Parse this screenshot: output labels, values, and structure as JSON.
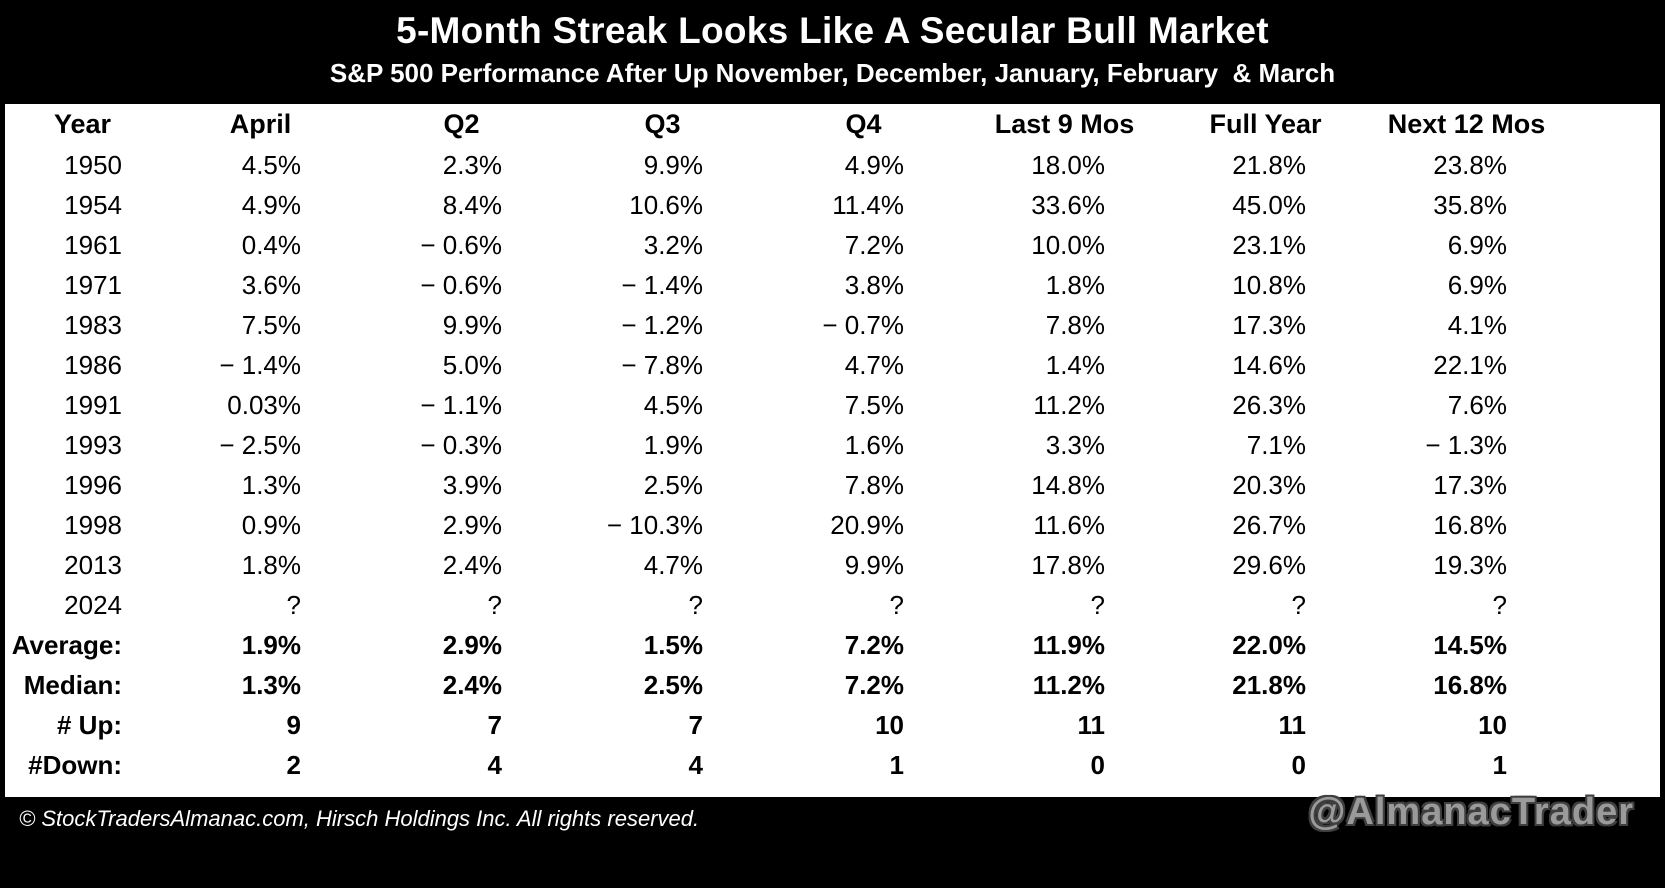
{
  "title_bar": {
    "title": "5-Month Streak Looks Like A Secular Bull Market",
    "subtitle": "S&P 500 Performance After Up November, December, January, February  & March"
  },
  "chart_data": {
    "type": "table",
    "columns": [
      "Year",
      "April",
      "Q2",
      "Q3",
      "Q4",
      "Last 9 Mos",
      "Full Year",
      "Next 12 Mos"
    ],
    "rows": [
      {
        "year": "1950",
        "cells": [
          "4.5%",
          "2.3%",
          "9.9%",
          "4.9%",
          "18.0%",
          "21.8%",
          "23.8%"
        ]
      },
      {
        "year": "1954",
        "cells": [
          "4.9%",
          "8.4%",
          "10.6%",
          "11.4%",
          "33.6%",
          "45.0%",
          "35.8%"
        ]
      },
      {
        "year": "1961",
        "cells": [
          "0.4%",
          "− 0.6%",
          "3.2%",
          "7.2%",
          "10.0%",
          "23.1%",
          "6.9%"
        ]
      },
      {
        "year": "1971",
        "cells": [
          "3.6%",
          "− 0.6%",
          "− 1.4%",
          "3.8%",
          "1.8%",
          "10.8%",
          "6.9%"
        ]
      },
      {
        "year": "1983",
        "cells": [
          "7.5%",
          "9.9%",
          "− 1.2%",
          "− 0.7%",
          "7.8%",
          "17.3%",
          "4.1%"
        ]
      },
      {
        "year": "1986",
        "cells": [
          "− 1.4%",
          "5.0%",
          "− 7.8%",
          "4.7%",
          "1.4%",
          "14.6%",
          "22.1%"
        ]
      },
      {
        "year": "1991",
        "cells": [
          "0.03%",
          "− 1.1%",
          "4.5%",
          "7.5%",
          "11.2%",
          "26.3%",
          "7.6%"
        ]
      },
      {
        "year": "1993",
        "cells": [
          "− 2.5%",
          "− 0.3%",
          "1.9%",
          "1.6%",
          "3.3%",
          "7.1%",
          "− 1.3%"
        ]
      },
      {
        "year": "1996",
        "cells": [
          "1.3%",
          "3.9%",
          "2.5%",
          "7.8%",
          "14.8%",
          "20.3%",
          "17.3%"
        ]
      },
      {
        "year": "1998",
        "cells": [
          "0.9%",
          "2.9%",
          "− 10.3%",
          "20.9%",
          "11.6%",
          "26.7%",
          "16.8%"
        ]
      },
      {
        "year": "2013",
        "cells": [
          "1.8%",
          "2.4%",
          "4.7%",
          "9.9%",
          "17.8%",
          "29.6%",
          "19.3%"
        ]
      },
      {
        "year": "2024",
        "cells": [
          "?",
          "?",
          "?",
          "?",
          "?",
          "?",
          "?"
        ]
      }
    ],
    "summary": [
      {
        "label": "Average:",
        "cells": [
          "1.9%",
          "2.9%",
          "1.5%",
          "7.2%",
          "11.9%",
          "22.0%",
          "14.5%"
        ]
      },
      {
        "label": "Median:",
        "cells": [
          "1.3%",
          "2.4%",
          "2.5%",
          "7.2%",
          "11.2%",
          "21.8%",
          "16.8%"
        ]
      },
      {
        "label": "# Up:",
        "cells": [
          "9",
          "7",
          "7",
          "10",
          "11",
          "11",
          "10"
        ]
      },
      {
        "label": "#Down:",
        "cells": [
          "2",
          "4",
          "4",
          "1",
          "0",
          "0",
          "1"
        ]
      }
    ],
    "negative_color": "#e02015"
  },
  "footer": {
    "copyright": "© StockTradersAlmanac.com, Hirsch Holdings Inc. All rights reserved.",
    "watermark": "@AlmanacTrader",
    "watermark_color": "#9a9a9a"
  }
}
